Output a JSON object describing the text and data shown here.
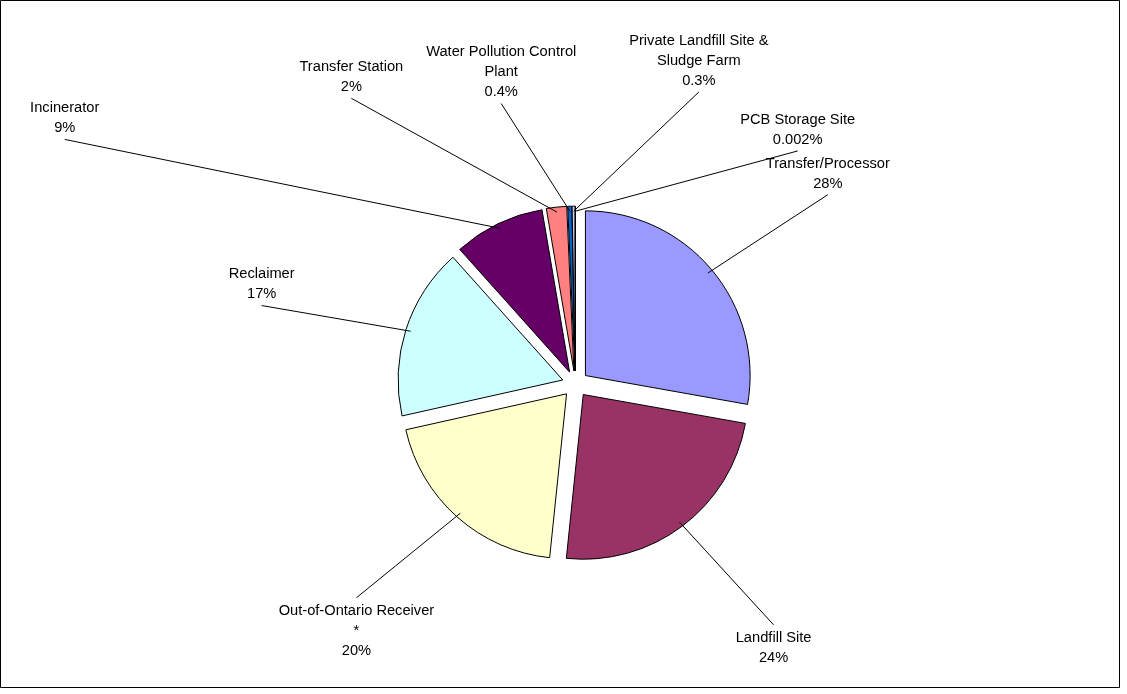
{
  "chart_data": {
    "type": "pie",
    "categories": [
      "Transfer/Processor",
      "Landfill Site",
      "Out-of-Ontario Receiver *",
      "Reclaimer",
      "Incinerator",
      "Transfer Station",
      "Water Pollution Control Plant",
      "Private Landfill Site & Sludge Farm",
      "PCB Storage Site"
    ],
    "values": [
      28,
      24,
      20,
      17,
      9,
      2,
      0.4,
      0.3,
      0.002
    ],
    "value_labels": [
      "28%",
      "24%",
      "20%",
      "17%",
      "9%",
      "2%",
      "0.4%",
      "0.3%",
      "0.002%"
    ],
    "colors": [
      "#9999ff",
      "#993366",
      "#ffffcc",
      "#ccffff",
      "#660066",
      "#ff8080",
      "#0066cc",
      "#ccccff",
      "#000080"
    ]
  }
}
